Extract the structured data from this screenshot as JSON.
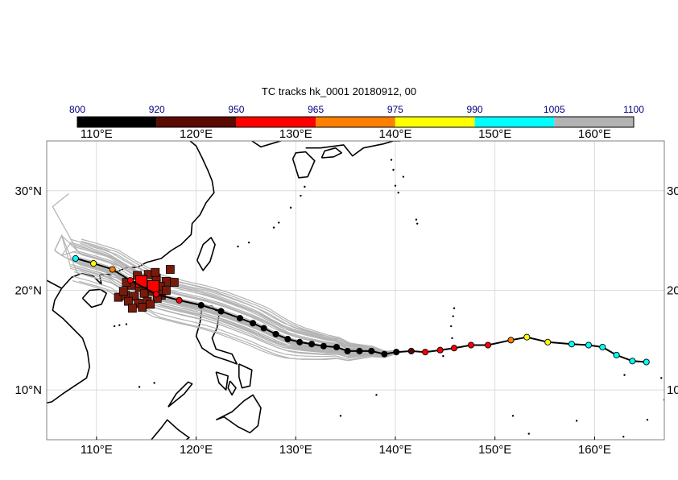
{
  "title": "TC tracks  hk_0001 20180912, 00",
  "colorbar": {
    "boundaries": [
      "800",
      "920",
      "950",
      "965",
      "975",
      "990",
      "1005",
      "1100"
    ],
    "colors": [
      "#000000",
      "#5a0a00",
      "#ff0000",
      "#ff8000",
      "#ffff00",
      "#00ffff",
      "#b3b3b3"
    ],
    "label_color": "#000080"
  },
  "map": {
    "lon_range": [
      105,
      167
    ],
    "lat_range": [
      5,
      35
    ],
    "lon_ticks": [
      "110°E",
      "120°E",
      "130°E",
      "140°E",
      "150°E",
      "160°E"
    ],
    "lat_ticks": [
      "30°N",
      "20°N",
      "10°N"
    ],
    "grid": true,
    "grid_color": "#d3d3d3",
    "ensemble_track_color": "#b3b3b3"
  },
  "forecast_track": [
    {
      "lon": 165.2,
      "lat": 12.8,
      "color": "#00ffff"
    },
    {
      "lon": 163.8,
      "lat": 12.9,
      "color": "#00ffff"
    },
    {
      "lon": 162.2,
      "lat": 13.5,
      "color": "#00ffff"
    },
    {
      "lon": 160.8,
      "lat": 14.3,
      "color": "#00ffff"
    },
    {
      "lon": 159.4,
      "lat": 14.5,
      "color": "#00ffff"
    },
    {
      "lon": 157.7,
      "lat": 14.6,
      "color": "#00ffff"
    },
    {
      "lon": 155.3,
      "lat": 14.8,
      "color": "#ffff00"
    },
    {
      "lon": 153.2,
      "lat": 15.3,
      "color": "#ffff00"
    },
    {
      "lon": 151.6,
      "lat": 15.0,
      "color": "#ff8000"
    },
    {
      "lon": 149.3,
      "lat": 14.5,
      "color": "#ff0000"
    },
    {
      "lon": 147.6,
      "lat": 14.5,
      "color": "#ff0000"
    },
    {
      "lon": 145.9,
      "lat": 14.2,
      "color": "#ff0000"
    },
    {
      "lon": 144.5,
      "lat": 14.0,
      "color": "#ff0000"
    },
    {
      "lon": 143.0,
      "lat": 13.8,
      "color": "#ff0000"
    },
    {
      "lon": 141.6,
      "lat": 13.9,
      "color": "#5a0a00"
    },
    {
      "lon": 140.1,
      "lat": 13.8,
      "color": "#000000"
    },
    {
      "lon": 138.9,
      "lat": 13.6,
      "color": "#000000"
    },
    {
      "lon": 137.6,
      "lat": 13.9,
      "color": "#000000"
    },
    {
      "lon": 136.4,
      "lat": 13.9,
      "color": "#000000"
    },
    {
      "lon": 135.2,
      "lat": 13.9,
      "color": "#000000"
    },
    {
      "lon": 134.1,
      "lat": 14.3,
      "color": "#000000"
    },
    {
      "lon": 132.8,
      "lat": 14.4,
      "color": "#000000"
    },
    {
      "lon": 131.6,
      "lat": 14.6,
      "color": "#000000"
    },
    {
      "lon": 130.4,
      "lat": 14.8,
      "color": "#000000"
    },
    {
      "lon": 129.2,
      "lat": 15.1,
      "color": "#000000"
    },
    {
      "lon": 128.0,
      "lat": 15.6,
      "color": "#000000"
    },
    {
      "lon": 126.8,
      "lat": 16.2,
      "color": "#000000"
    },
    {
      "lon": 125.7,
      "lat": 16.7,
      "color": "#000000"
    },
    {
      "lon": 124.4,
      "lat": 17.2,
      "color": "#000000"
    },
    {
      "lon": 122.5,
      "lat": 17.9,
      "color": "#000000"
    },
    {
      "lon": 120.5,
      "lat": 18.5,
      "color": "#000000"
    },
    {
      "lon": 118.3,
      "lat": 19.0,
      "color": "#ff0000"
    },
    {
      "lon": 116.0,
      "lat": 19.6,
      "color": "#ff0000"
    },
    {
      "lon": 113.4,
      "lat": 21.0,
      "color": "#ff0000"
    },
    {
      "lon": 111.6,
      "lat": 22.1,
      "color": "#ff8000"
    },
    {
      "lon": 109.7,
      "lat": 22.7,
      "color": "#ffff00"
    },
    {
      "lon": 107.9,
      "lat": 23.2,
      "color": "#00ffff"
    }
  ],
  "genesis_markers": {
    "color": "#7a1a0a",
    "highlight_color": "#ff0000",
    "points": [
      [
        117.4,
        22.1
      ],
      [
        115.2,
        21.6
      ],
      [
        114.6,
        21.1
      ],
      [
        116.0,
        21.2
      ],
      [
        117.0,
        20.9
      ],
      [
        113.5,
        20.5
      ],
      [
        114.3,
        20.3
      ],
      [
        115.3,
        20.6
      ],
      [
        116.4,
        20.4
      ],
      [
        117.8,
        20.8
      ],
      [
        112.2,
        19.3
      ],
      [
        112.9,
        19.5
      ],
      [
        113.8,
        19.4
      ],
      [
        114.8,
        19.7
      ],
      [
        115.6,
        19.9
      ],
      [
        116.5,
        19.5
      ],
      [
        113.2,
        18.9
      ],
      [
        114.2,
        18.7
      ],
      [
        115.1,
        18.9
      ],
      [
        116.1,
        19.2
      ],
      [
        113.6,
        18.2
      ],
      [
        114.6,
        18.3
      ],
      [
        115.4,
        18.6
      ],
      [
        117.0,
        20.0
      ],
      [
        114.1,
        21.5
      ],
      [
        115.9,
        21.8
      ],
      [
        113.0,
        20.8
      ],
      [
        112.7,
        19.9
      ]
    ],
    "highlight": [
      [
        115.7,
        20.4
      ],
      [
        114.5,
        20.9
      ]
    ]
  }
}
